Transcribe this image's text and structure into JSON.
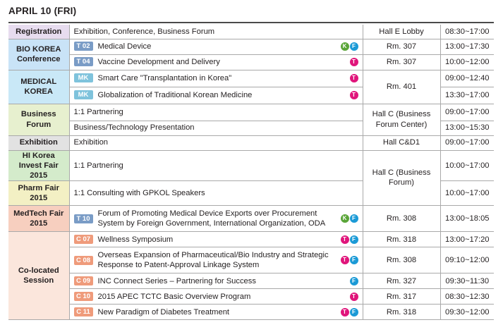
{
  "date_title": "APRIL 10 (FRI)",
  "colors": {
    "badge_k": "#5aa538",
    "badge_f": "#1b9ad6",
    "badge_t": "#e0157b",
    "tag_t": "#7a9cc6",
    "tag_mk": "#7fc3dc",
    "tag_c": "#ef9b7b"
  },
  "badge_letters": {
    "k": "K",
    "f": "F",
    "t": "T"
  },
  "registration": {
    "category": "Registration",
    "program": "Exhibition, Conference, Business Forum",
    "hall": "Hall E Lobby",
    "time": "08:30~17:00"
  },
  "bio_korea": {
    "category": "BIO KOREA Conference",
    "rows": [
      {
        "tag": "T 02",
        "title": "Medical Device",
        "hall": "Rm. 307",
        "time": "13:00~17:30"
      },
      {
        "tag": "T 04",
        "title": "Vaccine Development and Delivery",
        "hall": "Rm. 307",
        "time": "10:00~12:00"
      }
    ]
  },
  "medical_korea": {
    "category": "MEDICAL KOREA",
    "hall": "Rm. 401",
    "rows": [
      {
        "tag": "MK",
        "title": "Smart Care \"Transplantation in Korea\"",
        "time": "09:00~12:40"
      },
      {
        "tag": "MK",
        "title": "Globalization of Traditional Korean Medicine",
        "time": "13:30~17:00"
      }
    ]
  },
  "business_forum": {
    "category": "Business Forum",
    "hall": "Hall C (Business Forum Center)",
    "rows": [
      {
        "title": "1:1 Partnering",
        "time": "09:00~17:00"
      },
      {
        "title": "Business/Technology Presentation",
        "time": "13:00~15:30"
      }
    ]
  },
  "exhibition": {
    "category": "Exhibition",
    "program": "Exhibition",
    "hall": "Hall C&D1",
    "time": "09:00~17:00"
  },
  "hi_korea": {
    "category": "HI Korea Invest Fair 2015",
    "program": "1:1 Partnering",
    "time": "10:00~17:00"
  },
  "pharm_fair": {
    "category": "Pharm Fair 2015",
    "program": "1:1 Consulting with GPKOL Speakers",
    "time": "10:00~17:00"
  },
  "hall_c_business": "Hall C (Business Forum)",
  "medtech": {
    "category": "MedTech Fair 2015",
    "tag": "T 10",
    "title": "Forum of Promoting Medical Device Exports over Procurement System by Foreign Government, International Organization, ODA",
    "hall": "Rm. 308",
    "time": "13:00~18:05"
  },
  "colocated": {
    "category": "Co-located Session",
    "rows": [
      {
        "tag": "C 07",
        "title": "Wellness Symposium",
        "hall": "Rm. 318",
        "time": "13:00~17:20"
      },
      {
        "tag": "C 08",
        "title": "Overseas Expansion of Pharmaceutical/Bio Industry and Strategic Response to Patent-Approval Linkage System",
        "hall": "Rm. 308",
        "time": "09:10~12:00"
      },
      {
        "tag": "C 09",
        "title": "INC Connect Series – Partnering for Success",
        "hall": "Rm. 327",
        "time": "09:30~11:30"
      },
      {
        "tag": "C 10",
        "title": "2015 APEC TCTC Basic Overview Program",
        "hall": "Rm. 317",
        "time": "08:30~12:30"
      },
      {
        "tag": "C 11",
        "title": "New Paradigm of Diabetes Treatment",
        "hall": "Rm. 318",
        "time": "09:30~12:00"
      }
    ]
  }
}
